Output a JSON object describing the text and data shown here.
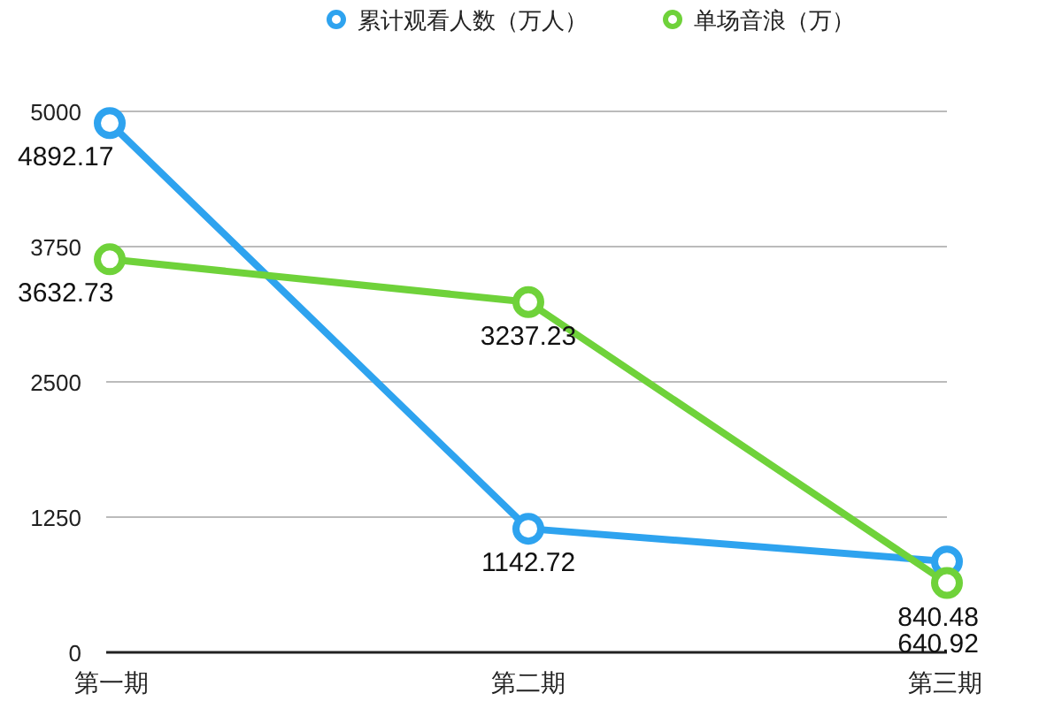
{
  "chart_data": {
    "type": "line",
    "categories": [
      "第一期",
      "第二期",
      "第三期"
    ],
    "series": [
      {
        "name": "累计观看人数（万人）",
        "color": "#2ea3ef",
        "values": [
          4892.17,
          1142.72,
          840.48
        ]
      },
      {
        "name": "单场音浪（万）",
        "color": "#6fd23a",
        "values": [
          3632.73,
          3237.23,
          640.92
        ]
      }
    ],
    "ylim": [
      0,
      5000
    ],
    "yticks": [
      0,
      1250,
      2500,
      3750,
      5000
    ],
    "grid": "y",
    "legend": "top",
    "marker": "circle",
    "data_labels": true
  }
}
